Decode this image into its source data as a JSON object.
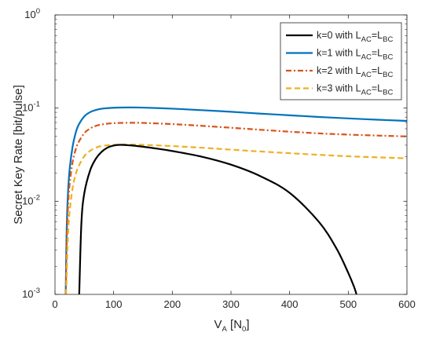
{
  "chart_data": {
    "type": "line",
    "xlabel": {
      "main": "V",
      "sub": "A",
      "unit_open": " [N",
      "unit_sub": "0",
      "unit_close": "]"
    },
    "ylabel": "Secret Key Rate [bit/pulse]",
    "xlim": [
      0,
      600
    ],
    "ylim": [
      0.001,
      1
    ],
    "yscale": "log",
    "grid": false,
    "legend_position": "top-right",
    "x_ticks": [
      0,
      100,
      200,
      300,
      400,
      500,
      600
    ],
    "x_tick_labels": [
      "0",
      "100",
      "200",
      "300",
      "400",
      "500",
      "600"
    ],
    "y_ticks": [
      {
        "value": 0.001,
        "base": "10",
        "exp": "-3"
      },
      {
        "value": 0.01,
        "base": "10",
        "exp": "-2"
      },
      {
        "value": 0.1,
        "base": "10",
        "exp": "-1"
      },
      {
        "value": 1,
        "base": "10",
        "exp": "0"
      }
    ],
    "series": [
      {
        "name": "k=0 with L_AC=L_BC",
        "legend": {
          "pre": "k=0 with L",
          "sub1": "AC",
          "mid": "=L",
          "sub2": "BC"
        },
        "color": "#000000",
        "dash": "solid",
        "x": [
          41.3,
          45,
          50,
          60,
          70,
          80,
          90,
          100,
          110,
          120,
          130,
          150,
          175,
          200,
          250,
          300,
          350,
          400,
          450,
          480,
          500,
          510,
          514
        ],
        "y": [
          0.001,
          0.0058,
          0.0122,
          0.0215,
          0.0288,
          0.0341,
          0.0378,
          0.0396,
          0.0403,
          0.0401,
          0.0397,
          0.0385,
          0.0366,
          0.0346,
          0.0301,
          0.0247,
          0.0186,
          0.0123,
          0.006,
          0.0031,
          0.0017,
          0.0012,
          0.001
        ]
      },
      {
        "name": "k=1 with L_AC=L_BC",
        "legend": {
          "pre": "k=1 with L",
          "sub1": "AC",
          "mid": "=L",
          "sub2": "BC"
        },
        "color": "#0072bd",
        "dash": "solid",
        "x": [
          18.3,
          19,
          20,
          22,
          25,
          30,
          35,
          40,
          50,
          60,
          70,
          80,
          100,
          125,
          150,
          200,
          250,
          300,
          350,
          400,
          450,
          500,
          550,
          600
        ],
        "y": [
          0.001,
          0.0022,
          0.0052,
          0.0118,
          0.0222,
          0.0385,
          0.0535,
          0.0655,
          0.0815,
          0.0905,
          0.0955,
          0.0985,
          0.1008,
          0.1015,
          0.1012,
          0.0985,
          0.095,
          0.0912,
          0.0872,
          0.0837,
          0.0803,
          0.0775,
          0.075,
          0.0728
        ]
      },
      {
        "name": "k=2 with L_AC=L_BC",
        "legend": {
          "pre": "k=2 with L",
          "sub1": "AC",
          "mid": "=L",
          "sub2": "BC"
        },
        "color": "#d95319",
        "dash": "dashdot",
        "x": [
          18.5,
          19,
          20,
          22,
          25,
          30,
          35,
          40,
          50,
          60,
          70,
          80,
          100,
          125,
          150,
          200,
          250,
          300,
          350,
          400,
          450,
          500,
          550,
          600
        ],
        "y": [
          0.001,
          0.0017,
          0.0036,
          0.0083,
          0.0154,
          0.0262,
          0.0355,
          0.0428,
          0.0538,
          0.0605,
          0.0645,
          0.0668,
          0.0689,
          0.0695,
          0.0693,
          0.0673,
          0.0645,
          0.0615,
          0.0585,
          0.0558,
          0.0535,
          0.0519,
          0.0507,
          0.0496
        ]
      },
      {
        "name": "k=3 with L_AC=L_BC",
        "legend": {
          "pre": "k=3 with L",
          "sub1": "AC",
          "mid": "=L",
          "sub2": "BC"
        },
        "color": "#edb120",
        "dash": "dashed",
        "x": [
          18.8,
          19.5,
          20,
          22,
          25,
          30,
          35,
          40,
          50,
          60,
          70,
          80,
          100,
          125,
          150,
          200,
          250,
          300,
          350,
          400,
          450,
          500,
          550,
          600
        ],
        "y": [
          0.001,
          0.0013,
          0.0017,
          0.0041,
          0.0078,
          0.0138,
          0.0192,
          0.0235,
          0.0305,
          0.0348,
          0.0376,
          0.0392,
          0.0404,
          0.0406,
          0.0403,
          0.0391,
          0.0375,
          0.0358,
          0.0342,
          0.0328,
          0.0315,
          0.0304,
          0.0296,
          0.0289
        ]
      }
    ]
  }
}
